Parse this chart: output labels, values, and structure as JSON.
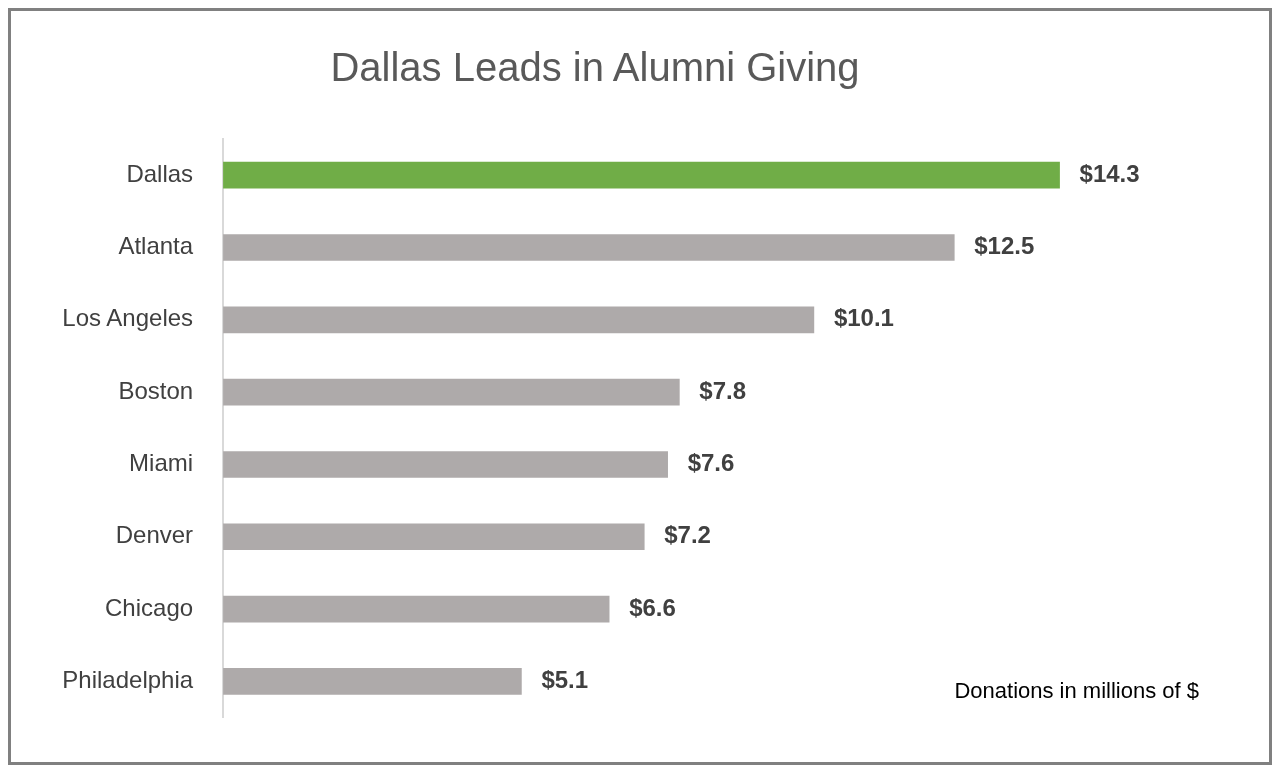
{
  "chart_data": {
    "type": "bar",
    "orientation": "horizontal",
    "title": "Dallas Leads in Alumni Giving",
    "categories": [
      "Dallas",
      "Atlanta",
      "Los Angeles",
      "Boston",
      "Miami",
      "Denver",
      "Chicago",
      "Philadelphia"
    ],
    "values": [
      14.3,
      12.5,
      10.1,
      7.8,
      7.6,
      7.2,
      6.6,
      5.1
    ],
    "colors": [
      "#70ad47",
      "#aeaaaa",
      "#aeaaaa",
      "#aeaaaa",
      "#aeaaaa",
      "#aeaaaa",
      "#aeaaaa",
      "#aeaaaa"
    ],
    "value_labels": [
      "$14.3",
      "$12.5",
      "$10.1",
      "$7.8",
      "$7.6",
      "$7.2",
      "$6.6",
      "$5.1"
    ],
    "annotations": [
      "Donations in millions of $"
    ],
    "grid": false,
    "legend": false
  }
}
